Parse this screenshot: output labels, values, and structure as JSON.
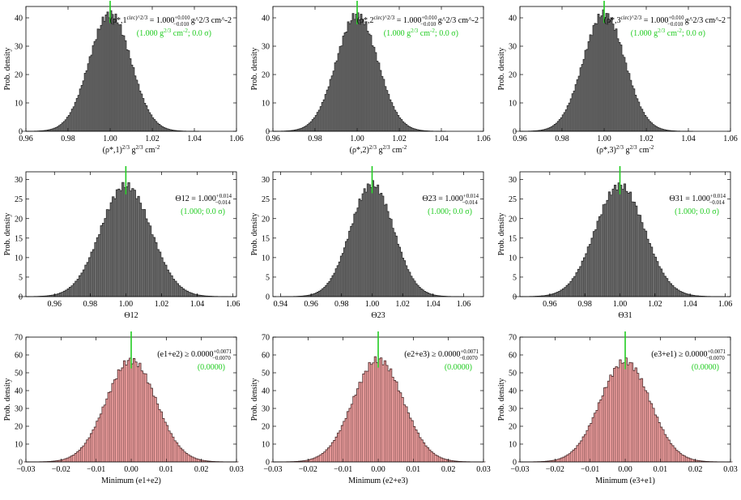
{
  "figure": {
    "ylabel": "Prob. density",
    "colors": {
      "gray_fill": "#6b6b6b",
      "gray_edge": "#2a2a2a",
      "red_fill": "#e89a9a",
      "red_edge": "#4a2a2a",
      "true_line": "#22cc22",
      "annotation": "#000000",
      "annotation_truth": "#22cc22"
    }
  },
  "chart_data": [
    {
      "type": "bar",
      "style": "histogram",
      "color": "gray",
      "title": "",
      "xlabel": "(ρ*,1)^2/3 g^2/3 cm^-2",
      "ylabel": "Prob. density",
      "xlim": [
        0.96,
        1.06
      ],
      "ylim": [
        0,
        44
      ],
      "xticks": [
        "0.96",
        "0.98",
        "1.00",
        "1.02",
        "1.04",
        "1.06"
      ],
      "yticks": [
        "0",
        "10",
        "20",
        "30",
        "40"
      ],
      "distribution": {
        "mean": 1.0,
        "sigma": 0.0098,
        "peak": 41.5
      },
      "true_value": 1.0,
      "annotation": "(ρ*,1^circ)^2/3 = 1.000 +0.010 −0.010 g^2/3 cm^-2",
      "annotation_truth": "(1.000 g^2/3 cm^-2; 0.0 σ)"
    },
    {
      "type": "bar",
      "style": "histogram",
      "color": "gray",
      "title": "",
      "xlabel": "(ρ*,2)^2/3 g^2/3 cm^-2",
      "ylabel": "Prob. density",
      "xlim": [
        0.96,
        1.06
      ],
      "ylim": [
        0,
        44
      ],
      "xticks": [
        "0.96",
        "0.98",
        "1.00",
        "1.02",
        "1.04",
        "1.06"
      ],
      "yticks": [
        "0",
        "10",
        "20",
        "30",
        "40"
      ],
      "distribution": {
        "mean": 1.0,
        "sigma": 0.0098,
        "peak": 41.0
      },
      "true_value": 1.0,
      "annotation": "(ρ*,2^circ)^2/3 = 1.000 +0.010 −0.010 g^2/3 cm^-2",
      "annotation_truth": "(1.000 g^2/3 cm^-2; 0.0 σ)"
    },
    {
      "type": "bar",
      "style": "histogram",
      "color": "gray",
      "title": "",
      "xlabel": "(ρ*,3)^2/3 g^2/3 cm^-2",
      "ylabel": "Prob. density",
      "xlim": [
        0.96,
        1.06
      ],
      "ylim": [
        0,
        44
      ],
      "xticks": [
        "0.96",
        "0.98",
        "1.00",
        "1.02",
        "1.04",
        "1.06"
      ],
      "yticks": [
        "0",
        "10",
        "20",
        "30",
        "40"
      ],
      "distribution": {
        "mean": 1.0,
        "sigma": 0.0098,
        "peak": 41.5
      },
      "true_value": 1.0,
      "annotation": "(ρ*,3^circ)^2/3 = 1.000 +0.010 −0.010 g^2/3 cm^-2",
      "annotation_truth": "(1.000 g^2/3 cm^-2; 0.0 σ)"
    },
    {
      "type": "bar",
      "style": "histogram",
      "color": "gray",
      "title": "",
      "xlabel": "Θ12",
      "ylabel": "Prob. density",
      "xlim": [
        0.944,
        1.062
      ],
      "ylim": [
        0,
        32
      ],
      "xticks": [
        "0.96",
        "0.98",
        "1.00",
        "1.02",
        "1.04",
        "1.06"
      ],
      "yticks": [
        "0",
        "5",
        "10",
        "15",
        "20",
        "25",
        "30"
      ],
      "distribution": {
        "mean": 1.0,
        "sigma": 0.014,
        "peak": 28.5
      },
      "true_value": 1.0,
      "annotation": "Θ12 = 1.000 +0.014 −0.014",
      "annotation_truth": "(1.000; 0.0 σ)"
    },
    {
      "type": "bar",
      "style": "histogram",
      "color": "gray",
      "title": "",
      "xlabel": "Θ23",
      "ylabel": "Prob. density",
      "xlim": [
        0.935,
        1.073
      ],
      "ylim": [
        0,
        32
      ],
      "xticks": [
        "0.94",
        "0.96",
        "0.98",
        "1.00",
        "1.02",
        "1.04",
        "1.06"
      ],
      "yticks": [
        "0",
        "5",
        "10",
        "15",
        "20",
        "25",
        "30"
      ],
      "distribution": {
        "mean": 1.0,
        "sigma": 0.014,
        "peak": 28.8
      },
      "true_value": 1.0,
      "annotation": "Θ23 = 1.000 +0.014 −0.014",
      "annotation_truth": "(1.000; 0.0 σ)"
    },
    {
      "type": "bar",
      "style": "histogram",
      "color": "gray",
      "title": "",
      "xlabel": "Θ31",
      "ylabel": "Prob. density",
      "xlim": [
        0.943,
        1.063
      ],
      "ylim": [
        0,
        32
      ],
      "xticks": [
        "0.96",
        "0.98",
        "1.00",
        "1.02",
        "1.04",
        "1.06"
      ],
      "yticks": [
        "0",
        "5",
        "10",
        "15",
        "20",
        "25",
        "30"
      ],
      "distribution": {
        "mean": 1.0,
        "sigma": 0.014,
        "peak": 28.5
      },
      "true_value": 1.0,
      "annotation": "Θ31 = 1.000 +0.014 −0.014",
      "annotation_truth": "(1.000; 0.0 σ)"
    },
    {
      "type": "bar",
      "style": "histogram",
      "color": "red",
      "title": "",
      "xlabel": "Minimum (e1+e2)",
      "ylabel": "Prob. density",
      "xlim": [
        -0.03,
        0.03
      ],
      "ylim": [
        0,
        70
      ],
      "xticks": [
        "−0.03",
        "−0.02",
        "−0.01",
        "0.00",
        "0.01",
        "0.02",
        "0.03"
      ],
      "yticks": [
        "0",
        "10",
        "20",
        "30",
        "40",
        "50",
        "60",
        "70"
      ],
      "distribution": {
        "mean": 0.0,
        "sigma": 0.0071,
        "peak": 57.0
      },
      "true_value": 0.0,
      "annotation": "(e1+e2) ≥ 0.0000 +0.0071 −0.0070",
      "annotation_truth": "(0.0000)"
    },
    {
      "type": "bar",
      "style": "histogram",
      "color": "red",
      "title": "",
      "xlabel": "Minimum (e2+e3)",
      "ylabel": "Prob. density",
      "xlim": [
        -0.03,
        0.03
      ],
      "ylim": [
        0,
        70
      ],
      "xticks": [
        "−0.03",
        "−0.02",
        "−0.01",
        "0.00",
        "0.01",
        "0.02",
        "0.03"
      ],
      "yticks": [
        "0",
        "10",
        "20",
        "30",
        "40",
        "50",
        "60",
        "70"
      ],
      "distribution": {
        "mean": 0.0,
        "sigma": 0.0071,
        "peak": 57.5
      },
      "true_value": 0.0,
      "annotation": "(e2+e3) ≥ 0.0000 +0.0071 −0.0070",
      "annotation_truth": "(0.0000)"
    },
    {
      "type": "bar",
      "style": "histogram",
      "color": "red",
      "title": "",
      "xlabel": "Minimum (e3+e1)",
      "ylabel": "Prob. density",
      "xlim": [
        -0.03,
        0.03
      ],
      "ylim": [
        0,
        70
      ],
      "xticks": [
        "−0.03",
        "−0.02",
        "−0.01",
        "0.00",
        "0.01",
        "0.02",
        "0.03"
      ],
      "yticks": [
        "0",
        "10",
        "20",
        "30",
        "40",
        "50",
        "60",
        "70"
      ],
      "distribution": {
        "mean": 0.0,
        "sigma": 0.0071,
        "peak": 56.5
      },
      "true_value": 0.0,
      "annotation": "(e3+e1) ≥ 0.0000 +0.0071 −0.0070",
      "annotation_truth": "(0.0000)"
    }
  ]
}
